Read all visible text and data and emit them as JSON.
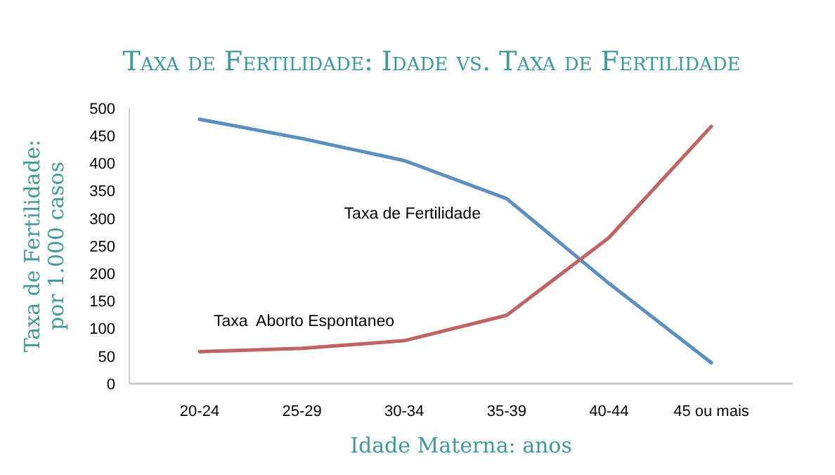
{
  "chart_data": {
    "type": "line",
    "title": "Taxa de Fertilidade: Idade vs. Taxa de Fertilidade",
    "xlabel": "Idade Materna: anos",
    "ylabel": "Taxa de Fertilidade: por 1.000 casos",
    "categories": [
      "20-24",
      "25-29",
      "30-34",
      "35-39",
      "40-44",
      "45 ou mais"
    ],
    "series": [
      {
        "name": "Taxa de Fertilidade",
        "color": "#5b8fbf",
        "values": [
          480,
          445,
          405,
          336,
          182,
          38
        ]
      },
      {
        "name": "Taxa  Aborto Espontaneo",
        "color": "#bf6462",
        "values": [
          58,
          64,
          78,
          124,
          265,
          467
        ]
      }
    ],
    "ylim": [
      0,
      500
    ],
    "yticks": [
      0,
      50,
      100,
      150,
      200,
      250,
      300,
      350,
      400,
      450,
      500
    ],
    "grid": false,
    "marker": "none",
    "line_style": "solid"
  }
}
